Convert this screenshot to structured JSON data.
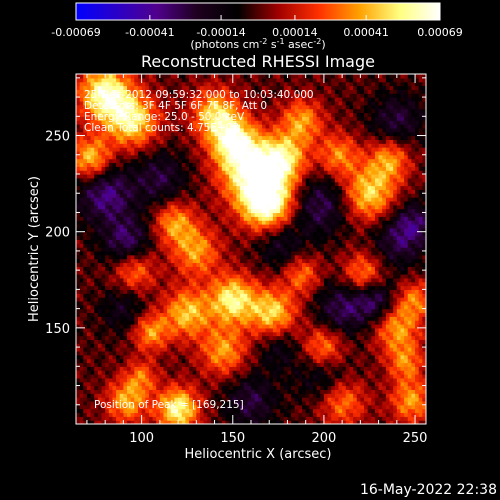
{
  "chart_data": {
    "type": "heatmap",
    "title": "Reconstructed RHESSI Image",
    "colorbar": {
      "tick_labels": [
        "-0.00069",
        "-0.00041",
        "-0.00014",
        "0.00014",
        "0.00041",
        "0.00069"
      ],
      "range": [
        -0.00069,
        0.00069
      ],
      "unit_prefix": "(photons cm",
      "unit_exp1": "-2",
      "unit_mid": " s",
      "unit_exp2": "-1",
      "unit_mid2": " asec",
      "unit_exp3": "-2",
      "unit_suffix": ")",
      "colormap": [
        "#0000ff",
        "#2a00c8",
        "#50008c",
        "#1e001e",
        "#000000",
        "#a00000",
        "#ff3000",
        "#ffa000",
        "#ffff80",
        "#ffffff"
      ]
    },
    "xlabel": "Heliocentric X (arcsec)",
    "ylabel": "Heliocentric Y (arcsec)",
    "xlim": [
      64,
      256
    ],
    "ylim": [
      100,
      282
    ],
    "xticks": [
      100,
      150,
      200,
      250
    ],
    "yticks": [
      150,
      200,
      250
    ],
    "annotations": {
      "line1": "25-Dec-2012 09:59:32.000 to 10:03:40.000",
      "line2": "Detectors: 3F 4F 5F 6F 7F 8F, Att 0",
      "line3": "Energy Range: 25.0 - 50.0 keV",
      "line4": "Clean     Total counts: 4.75E+03",
      "peak": "Position of Peak = [169,215]"
    },
    "peak": [
      169,
      215
    ],
    "grid": false
  },
  "timestamp": "16-May-2022 22:38"
}
